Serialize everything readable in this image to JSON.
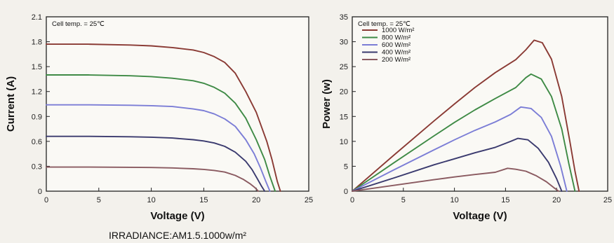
{
  "caption": "IRRADIANCE:AM1.5.1000w/m²",
  "chart_data": [
    {
      "type": "line",
      "xlabel": "Voltage (V)",
      "ylabel": "Current (A)",
      "annotation": "Cell temp. = 25℃",
      "xlim": [
        0,
        25
      ],
      "ylim": [
        0,
        2.1
      ],
      "xticks": [
        "0",
        "5",
        "10",
        "15",
        "20",
        "25"
      ],
      "yticks": [
        "0",
        "0.3",
        "0.6",
        "0.9",
        "1.2",
        "1.5",
        "1.8",
        "2.1"
      ],
      "xtick_values": [
        0,
        5,
        10,
        15,
        20,
        25
      ],
      "ytick_values": [
        0,
        0.3,
        0.6,
        0.9,
        1.2,
        1.5,
        1.8,
        2.1
      ],
      "series": [
        {
          "color": "#8a3a34",
          "x": [
            0,
            4,
            8,
            10,
            12,
            14,
            15,
            16,
            17,
            18,
            19,
            20,
            21,
            21.5,
            22.0,
            22.3
          ],
          "y": [
            1.77,
            1.77,
            1.76,
            1.75,
            1.73,
            1.7,
            1.67,
            1.62,
            1.55,
            1.42,
            1.2,
            0.95,
            0.6,
            0.38,
            0.12,
            0
          ]
        },
        {
          "color": "#3e8a45",
          "x": [
            0,
            4,
            8,
            10,
            12,
            14,
            15,
            16,
            17,
            18,
            19,
            20,
            20.8,
            21.3,
            21.8
          ],
          "y": [
            1.4,
            1.4,
            1.39,
            1.38,
            1.36,
            1.33,
            1.3,
            1.25,
            1.18,
            1.06,
            0.88,
            0.62,
            0.38,
            0.18,
            0
          ]
        },
        {
          "color": "#7b7dd6",
          "x": [
            0,
            4,
            8,
            10,
            12,
            14,
            15,
            16,
            17,
            18,
            19,
            19.8,
            20.4,
            20.9,
            21.3
          ],
          "y": [
            1.04,
            1.04,
            1.035,
            1.03,
            1.02,
            0.99,
            0.97,
            0.93,
            0.87,
            0.78,
            0.62,
            0.45,
            0.28,
            0.12,
            0
          ]
        },
        {
          "color": "#3a3a6e",
          "x": [
            0,
            4,
            8,
            10,
            12,
            14,
            15,
            16,
            17,
            18,
            19,
            19.6,
            20.1,
            20.5,
            20.8
          ],
          "y": [
            0.66,
            0.66,
            0.655,
            0.65,
            0.64,
            0.62,
            0.605,
            0.58,
            0.54,
            0.47,
            0.36,
            0.26,
            0.15,
            0.06,
            0
          ]
        },
        {
          "color": "#8a5a60",
          "x": [
            0,
            4,
            8,
            10,
            12,
            14,
            15,
            16,
            17,
            18,
            18.8,
            19.4,
            19.9,
            20.2
          ],
          "y": [
            0.29,
            0.29,
            0.288,
            0.285,
            0.28,
            0.27,
            0.262,
            0.25,
            0.23,
            0.19,
            0.14,
            0.09,
            0.04,
            0
          ]
        }
      ]
    },
    {
      "type": "line",
      "xlabel": "Voltage (V)",
      "ylabel": "Power (w)",
      "annotation": "Cell temp. = 25℃",
      "xlim": [
        0,
        25
      ],
      "ylim": [
        0,
        35
      ],
      "xticks": [
        "0",
        "5",
        "10",
        "15",
        "20",
        "25"
      ],
      "yticks": [
        "0",
        "5",
        "10",
        "15",
        "20",
        "25",
        "30",
        "35"
      ],
      "xtick_values": [
        0,
        5,
        10,
        15,
        20,
        25
      ],
      "ytick_values": [
        0,
        5,
        10,
        15,
        20,
        25,
        30,
        35
      ],
      "legend": "top-left",
      "series": [
        {
          "name": "1000 W/m²",
          "color": "#8a3a34",
          "x": [
            0,
            4,
            8,
            10,
            12,
            14,
            16,
            17,
            17.8,
            18.6,
            19.5,
            20.5,
            21.3,
            21.8,
            22.2
          ],
          "y": [
            0,
            7.1,
            14.1,
            17.5,
            20.8,
            23.8,
            26.4,
            28.4,
            30.3,
            29.8,
            26.5,
            19,
            10,
            4,
            0
          ]
        },
        {
          "name": "800 W/m²",
          "color": "#3e8a45",
          "x": [
            0,
            4,
            8,
            10,
            12,
            14,
            16,
            17,
            17.5,
            18.5,
            19.5,
            20.5,
            21.2,
            21.8
          ],
          "y": [
            0,
            5.6,
            11.1,
            13.8,
            16.3,
            18.6,
            20.8,
            22.8,
            23.5,
            22.5,
            19,
            12.5,
            5.5,
            0
          ]
        },
        {
          "name": "600 W/m²",
          "color": "#7b7dd6",
          "x": [
            0,
            4,
            8,
            10,
            12,
            14,
            15.5,
            16.5,
            17.5,
            18.5,
            19.5,
            20.4,
            21.0
          ],
          "y": [
            0,
            4.2,
            8.3,
            10.3,
            12.2,
            13.9,
            15.4,
            16.9,
            16.6,
            14.8,
            11,
            5,
            0
          ]
        },
        {
          "name": "400 W/m²",
          "color": "#3a3a6e",
          "x": [
            0,
            4,
            8,
            10,
            12,
            14,
            15.5,
            16.2,
            17.2,
            18.2,
            19.2,
            20.0,
            20.5
          ],
          "y": [
            0,
            2.6,
            5.3,
            6.5,
            7.7,
            8.8,
            10.0,
            10.6,
            10.3,
            8.6,
            5.8,
            2.5,
            0
          ]
        },
        {
          "name": "200 W/m²",
          "color": "#8a5a60",
          "x": [
            0,
            4,
            8,
            10,
            12,
            14,
            15.2,
            16.0,
            17.0,
            18.0,
            19.0,
            19.8,
            20.2
          ],
          "y": [
            0,
            1.15,
            2.3,
            2.85,
            3.35,
            3.8,
            4.6,
            4.4,
            4.0,
            3.1,
            1.9,
            0.6,
            0
          ]
        }
      ]
    }
  ]
}
